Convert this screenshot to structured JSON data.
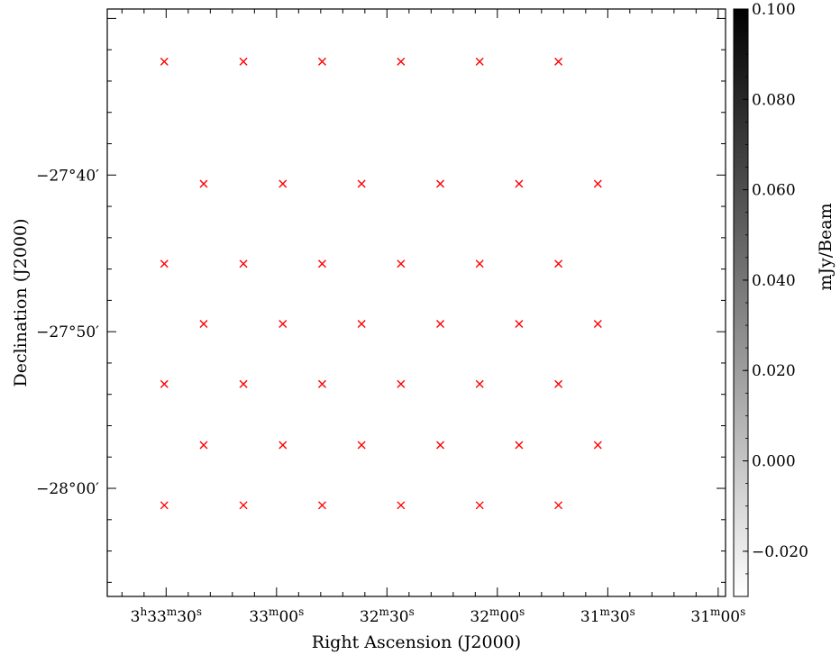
{
  "chart_data": {
    "type": "heatmap",
    "xlabel": "Right Ascension (J2000)",
    "ylabel": "Declination (J2000)",
    "x_ticks": [
      {
        "value": 1410,
        "h": "3",
        "m": "33",
        "s": "30",
        "show_h": true
      },
      {
        "value": 1380,
        "h": "",
        "m": "33",
        "s": "00",
        "show_h": false
      },
      {
        "value": 1350,
        "h": "",
        "m": "32",
        "s": "30",
        "show_h": false
      },
      {
        "value": 1320,
        "h": "",
        "m": "32",
        "s": "00",
        "show_h": false
      },
      {
        "value": 1290,
        "h": "",
        "m": "31",
        "s": "30",
        "show_h": false
      },
      {
        "value": 1260,
        "h": "",
        "m": "31",
        "s": "00",
        "show_h": false
      }
    ],
    "xlim": [
      1426,
      1258
    ],
    "y_ticks": [
      {
        "value": -27.6667,
        "label": "−27°40′"
      },
      {
        "value": -27.8333,
        "label": "−27°50′"
      },
      {
        "value": -28.0,
        "label": "−28°00′"
      }
    ],
    "ylim": [
      -28.115,
      -27.49
    ],
    "colorbar": {
      "label": "mJy/Beam",
      "ticks": [
        "0.100",
        "0.080",
        "0.060",
        "0.040",
        "0.020",
        "0.000",
        "−0.020"
      ],
      "range": [
        -0.03,
        0.1
      ],
      "colormap": "gray_r"
    },
    "pointing_marker_color": "#ff0000",
    "pointings": [
      {
        "ra": 1410.5,
        "dec": -27.546
      },
      {
        "ra": 1389.0,
        "dec": -27.546
      },
      {
        "ra": 1367.6,
        "dec": -27.546
      },
      {
        "ra": 1346.2,
        "dec": -27.546
      },
      {
        "ra": 1324.8,
        "dec": -27.546
      },
      {
        "ra": 1303.4,
        "dec": -27.546
      },
      {
        "ra": 1399.8,
        "dec": -27.676
      },
      {
        "ra": 1378.3,
        "dec": -27.676
      },
      {
        "ra": 1356.9,
        "dec": -27.676
      },
      {
        "ra": 1335.5,
        "dec": -27.676
      },
      {
        "ra": 1314.1,
        "dec": -27.676
      },
      {
        "ra": 1292.7,
        "dec": -27.676
      },
      {
        "ra": 1410.5,
        "dec": -27.761
      },
      {
        "ra": 1389.0,
        "dec": -27.761
      },
      {
        "ra": 1367.6,
        "dec": -27.761
      },
      {
        "ra": 1346.2,
        "dec": -27.761
      },
      {
        "ra": 1324.8,
        "dec": -27.761
      },
      {
        "ra": 1303.4,
        "dec": -27.761
      },
      {
        "ra": 1399.8,
        "dec": -27.825
      },
      {
        "ra": 1378.3,
        "dec": -27.825
      },
      {
        "ra": 1356.9,
        "dec": -27.825
      },
      {
        "ra": 1335.5,
        "dec": -27.825
      },
      {
        "ra": 1314.1,
        "dec": -27.825
      },
      {
        "ra": 1292.7,
        "dec": -27.825
      },
      {
        "ra": 1410.5,
        "dec": -27.889
      },
      {
        "ra": 1389.0,
        "dec": -27.889
      },
      {
        "ra": 1367.6,
        "dec": -27.889
      },
      {
        "ra": 1346.2,
        "dec": -27.889
      },
      {
        "ra": 1324.8,
        "dec": -27.889
      },
      {
        "ra": 1303.4,
        "dec": -27.889
      },
      {
        "ra": 1399.8,
        "dec": -27.954
      },
      {
        "ra": 1378.3,
        "dec": -27.954
      },
      {
        "ra": 1356.9,
        "dec": -27.954
      },
      {
        "ra": 1335.5,
        "dec": -27.954
      },
      {
        "ra": 1314.1,
        "dec": -27.954
      },
      {
        "ra": 1292.7,
        "dec": -27.954
      },
      {
        "ra": 1410.5,
        "dec": -28.018
      },
      {
        "ra": 1389.0,
        "dec": -28.018
      },
      {
        "ra": 1367.6,
        "dec": -28.018
      },
      {
        "ra": 1346.2,
        "dec": -28.018
      },
      {
        "ra": 1324.8,
        "dec": -28.018
      },
      {
        "ra": 1303.4,
        "dec": -28.018
      }
    ]
  }
}
